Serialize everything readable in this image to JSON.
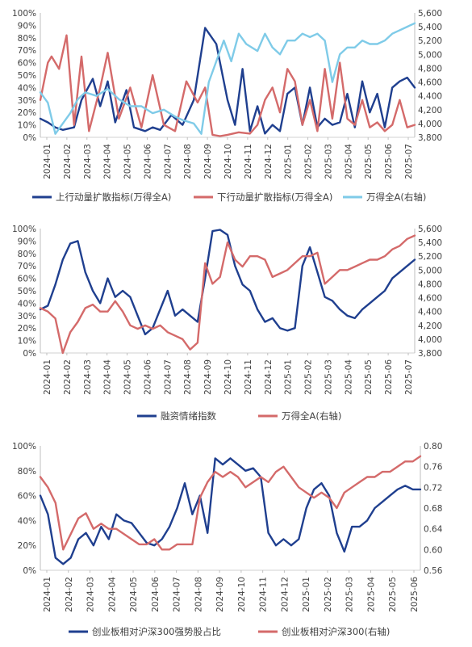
{
  "chart_data": [
    {
      "type": "line",
      "x_labels": [
        "2024-01",
        "2024-02",
        "2024-03",
        "2024-04",
        "2024-05",
        "2024-06",
        "2024-07",
        "2024-08",
        "2024-09",
        "2024-10",
        "2024-11",
        "2024-12",
        "2025-01",
        "2025-02",
        "2025-03",
        "2025-04",
        "2025-05",
        "2025-06",
        "2025-07"
      ],
      "y_left": {
        "ticks": [
          "0%",
          "10%",
          "20%",
          "30%",
          "40%",
          "50%",
          "60%",
          "70%",
          "80%",
          "90%",
          "100%"
        ],
        "range": [
          0,
          100
        ]
      },
      "y_right": {
        "ticks": [
          "3,800",
          "4,000",
          "4,200",
          "4,400",
          "4,600",
          "4,800",
          "5,000",
          "5,200",
          "5,400",
          "5,600"
        ],
        "range": [
          3800,
          5600
        ]
      },
      "legend_position": "bottom",
      "series": [
        {
          "name": "上行动量扩散指标(万得全A)",
          "axis": "left",
          "color": "#1f3f8f",
          "x": [
            0.0,
            0.02,
            0.04,
            0.06,
            0.09,
            0.11,
            0.14,
            0.16,
            0.18,
            0.2,
            0.23,
            0.25,
            0.28,
            0.3,
            0.32,
            0.35,
            0.38,
            0.41,
            0.44,
            0.47,
            0.5,
            0.52,
            0.54,
            0.56,
            0.58,
            0.6,
            0.62,
            0.64,
            0.66,
            0.68,
            0.7,
            0.72,
            0.74,
            0.76,
            0.78,
            0.8,
            0.82,
            0.84,
            0.86,
            0.88,
            0.9,
            0.92,
            0.94,
            0.96,
            0.98,
            1.0
          ],
          "values": [
            15,
            12,
            8,
            6,
            8,
            30,
            47,
            25,
            45,
            12,
            38,
            8,
            5,
            8,
            6,
            18,
            10,
            30,
            88,
            75,
            30,
            10,
            55,
            5,
            25,
            3,
            10,
            5,
            35,
            40,
            10,
            40,
            8,
            15,
            10,
            12,
            35,
            8,
            45,
            20,
            35,
            8,
            40,
            45,
            48,
            40
          ]
        },
        {
          "name": "下行动量扩散指标(万得全A)",
          "axis": "left",
          "color": "#d46a6a",
          "x": [
            0.0,
            0.02,
            0.03,
            0.05,
            0.07,
            0.09,
            0.11,
            0.13,
            0.16,
            0.18,
            0.21,
            0.24,
            0.27,
            0.3,
            0.33,
            0.36,
            0.39,
            0.42,
            0.44,
            0.46,
            0.48,
            0.5,
            0.53,
            0.56,
            0.58,
            0.6,
            0.62,
            0.64,
            0.66,
            0.68,
            0.7,
            0.72,
            0.74,
            0.76,
            0.78,
            0.8,
            0.82,
            0.84,
            0.86,
            0.88,
            0.9,
            0.92,
            0.94,
            0.96,
            0.98,
            1.0
          ],
          "values": [
            30,
            60,
            65,
            55,
            82,
            10,
            65,
            5,
            40,
            68,
            15,
            40,
            8,
            50,
            10,
            5,
            45,
            28,
            40,
            2,
            1,
            2,
            4,
            3,
            10,
            30,
            40,
            20,
            55,
            45,
            10,
            30,
            5,
            55,
            15,
            60,
            15,
            10,
            30,
            8,
            12,
            5,
            10,
            30,
            8,
            10
          ]
        },
        {
          "name": "万得全A(右轴)",
          "axis": "right",
          "color": "#7fcbe8",
          "x": [
            0.0,
            0.02,
            0.04,
            0.06,
            0.08,
            0.1,
            0.12,
            0.15,
            0.18,
            0.21,
            0.24,
            0.27,
            0.3,
            0.33,
            0.36,
            0.38,
            0.41,
            0.43,
            0.45,
            0.47,
            0.49,
            0.51,
            0.53,
            0.55,
            0.58,
            0.6,
            0.62,
            0.64,
            0.66,
            0.68,
            0.7,
            0.72,
            0.74,
            0.76,
            0.78,
            0.8,
            0.82,
            0.84,
            0.86,
            0.88,
            0.9,
            0.92,
            0.94,
            0.96,
            0.98,
            1.0
          ],
          "values": [
            4450,
            4300,
            3850,
            4000,
            4150,
            4350,
            4450,
            4400,
            4500,
            4350,
            4250,
            4250,
            4150,
            4200,
            4100,
            4050,
            4000,
            3850,
            4600,
            4900,
            5200,
            4900,
            5300,
            5150,
            5050,
            5300,
            5100,
            5000,
            5200,
            5200,
            5300,
            5250,
            5300,
            5200,
            4600,
            5000,
            5100,
            5100,
            5200,
            5150,
            5150,
            5200,
            5300,
            5350,
            5400,
            5450
          ]
        }
      ]
    },
    {
      "type": "line",
      "x_labels": [
        "2024-01",
        "2024-02",
        "2024-03",
        "2024-04",
        "2024-05",
        "2024-06",
        "2024-07",
        "2024-08",
        "2024-09",
        "2024-10",
        "2024-11",
        "2024-12",
        "2025-01",
        "2025-02",
        "2025-03",
        "2025-04",
        "2025-05",
        "2025-06",
        "2025-07"
      ],
      "y_left": {
        "ticks": [
          "0%",
          "10%",
          "20%",
          "30%",
          "40%",
          "50%",
          "60%",
          "70%",
          "80%",
          "90%",
          "100%"
        ],
        "range": [
          0,
          100
        ]
      },
      "y_right": {
        "ticks": [
          "3,800",
          "4,000",
          "4,200",
          "4,400",
          "4,600",
          "4,800",
          "5,000",
          "5,200",
          "5,400",
          "5,600"
        ],
        "range": [
          3800,
          5600
        ]
      },
      "legend_position": "bottom",
      "series": [
        {
          "name": "融资情绪指数",
          "axis": "left",
          "color": "#1f3f8f",
          "x": [
            0.0,
            0.02,
            0.04,
            0.06,
            0.08,
            0.1,
            0.12,
            0.14,
            0.16,
            0.18,
            0.2,
            0.22,
            0.24,
            0.26,
            0.28,
            0.3,
            0.32,
            0.34,
            0.36,
            0.38,
            0.4,
            0.42,
            0.44,
            0.46,
            0.48,
            0.5,
            0.52,
            0.54,
            0.56,
            0.58,
            0.6,
            0.62,
            0.64,
            0.66,
            0.68,
            0.7,
            0.72,
            0.74,
            0.76,
            0.78,
            0.8,
            0.82,
            0.84,
            0.86,
            0.88,
            0.9,
            0.92,
            0.94,
            0.96,
            0.98,
            1.0
          ],
          "values": [
            35,
            38,
            55,
            75,
            88,
            90,
            65,
            50,
            40,
            60,
            45,
            50,
            45,
            30,
            15,
            20,
            35,
            50,
            30,
            35,
            30,
            25,
            60,
            98,
            99,
            95,
            70,
            55,
            50,
            35,
            25,
            28,
            20,
            18,
            20,
            70,
            85,
            65,
            45,
            42,
            35,
            30,
            28,
            35,
            40,
            45,
            50,
            60,
            65,
            70,
            75
          ]
        },
        {
          "name": "万得全A(右轴)",
          "axis": "right",
          "color": "#d46a6a",
          "x": [
            0.0,
            0.02,
            0.04,
            0.06,
            0.08,
            0.1,
            0.12,
            0.14,
            0.16,
            0.18,
            0.2,
            0.22,
            0.24,
            0.26,
            0.28,
            0.3,
            0.32,
            0.34,
            0.36,
            0.38,
            0.4,
            0.42,
            0.44,
            0.46,
            0.48,
            0.5,
            0.52,
            0.54,
            0.56,
            0.58,
            0.6,
            0.62,
            0.64,
            0.66,
            0.68,
            0.7,
            0.72,
            0.74,
            0.76,
            0.78,
            0.8,
            0.82,
            0.84,
            0.86,
            0.88,
            0.9,
            0.92,
            0.94,
            0.96,
            0.98,
            1.0
          ],
          "values": [
            4450,
            4400,
            4300,
            3800,
            4100,
            4250,
            4450,
            4500,
            4400,
            4400,
            4550,
            4400,
            4200,
            4150,
            4200,
            4150,
            4200,
            4100,
            4050,
            4000,
            3850,
            3950,
            5100,
            4800,
            4900,
            5400,
            5150,
            5050,
            5200,
            5200,
            5150,
            4900,
            4950,
            5000,
            5100,
            5200,
            5200,
            5250,
            4800,
            4900,
            5000,
            5000,
            5050,
            5100,
            5150,
            5150,
            5200,
            5300,
            5350,
            5450,
            5500
          ]
        }
      ]
    },
    {
      "type": "line",
      "x_labels": [
        "2024-01",
        "2024-02",
        "2024-03",
        "2024-04",
        "2024-05",
        "2024-06",
        "2024-07",
        "2024-08",
        "2024-09",
        "2024-10",
        "2024-11",
        "2024-12",
        "2025-01",
        "2025-02",
        "2025-03",
        "2025-04",
        "2025-05",
        "2025-06"
      ],
      "y_left": {
        "ticks": [
          "0%",
          "20%",
          "40%",
          "60%",
          "80%",
          "100%"
        ],
        "range": [
          0,
          100
        ]
      },
      "y_right": {
        "ticks": [
          "0.56",
          "0.60",
          "0.64",
          "0.68",
          "0.72",
          "0.76",
          "0.80"
        ],
        "range": [
          0.56,
          0.8
        ]
      },
      "legend_position": "bottom",
      "series": [
        {
          "name": "创业板相对沪深300强势股占比",
          "axis": "left",
          "color": "#1f3f8f",
          "x": [
            0.0,
            0.02,
            0.04,
            0.06,
            0.08,
            0.1,
            0.12,
            0.14,
            0.16,
            0.18,
            0.2,
            0.22,
            0.24,
            0.26,
            0.28,
            0.3,
            0.32,
            0.34,
            0.36,
            0.38,
            0.4,
            0.42,
            0.44,
            0.46,
            0.48,
            0.5,
            0.52,
            0.54,
            0.56,
            0.58,
            0.6,
            0.62,
            0.64,
            0.66,
            0.68,
            0.7,
            0.72,
            0.74,
            0.76,
            0.78,
            0.8,
            0.82,
            0.84,
            0.86,
            0.88,
            0.9,
            0.92,
            0.94,
            0.96,
            0.98,
            1.0
          ],
          "values": [
            60,
            45,
            10,
            5,
            10,
            25,
            30,
            20,
            35,
            25,
            45,
            40,
            38,
            30,
            22,
            20,
            25,
            35,
            50,
            70,
            45,
            60,
            30,
            90,
            85,
            90,
            85,
            80,
            82,
            75,
            30,
            20,
            25,
            20,
            25,
            50,
            65,
            70,
            60,
            30,
            15,
            35,
            35,
            40,
            50,
            55,
            60,
            65,
            68,
            65,
            65
          ]
        },
        {
          "name": "创业板相对沪深300(右轴)",
          "axis": "right",
          "color": "#d46a6a",
          "x": [
            0.0,
            0.02,
            0.04,
            0.06,
            0.08,
            0.1,
            0.12,
            0.14,
            0.16,
            0.18,
            0.2,
            0.22,
            0.24,
            0.26,
            0.28,
            0.3,
            0.32,
            0.34,
            0.36,
            0.38,
            0.4,
            0.42,
            0.44,
            0.46,
            0.48,
            0.5,
            0.52,
            0.54,
            0.56,
            0.58,
            0.6,
            0.62,
            0.64,
            0.66,
            0.68,
            0.7,
            0.72,
            0.74,
            0.76,
            0.78,
            0.8,
            0.82,
            0.84,
            0.86,
            0.88,
            0.9,
            0.92,
            0.94,
            0.96,
            0.98,
            1.0
          ],
          "values": [
            0.74,
            0.72,
            0.69,
            0.6,
            0.63,
            0.66,
            0.67,
            0.64,
            0.65,
            0.64,
            0.64,
            0.63,
            0.62,
            0.61,
            0.61,
            0.62,
            0.6,
            0.6,
            0.61,
            0.61,
            0.61,
            0.7,
            0.73,
            0.75,
            0.74,
            0.75,
            0.74,
            0.72,
            0.73,
            0.74,
            0.73,
            0.75,
            0.76,
            0.74,
            0.72,
            0.71,
            0.7,
            0.71,
            0.7,
            0.68,
            0.71,
            0.72,
            0.73,
            0.74,
            0.74,
            0.75,
            0.75,
            0.76,
            0.77,
            0.77,
            0.78
          ]
        }
      ]
    }
  ]
}
